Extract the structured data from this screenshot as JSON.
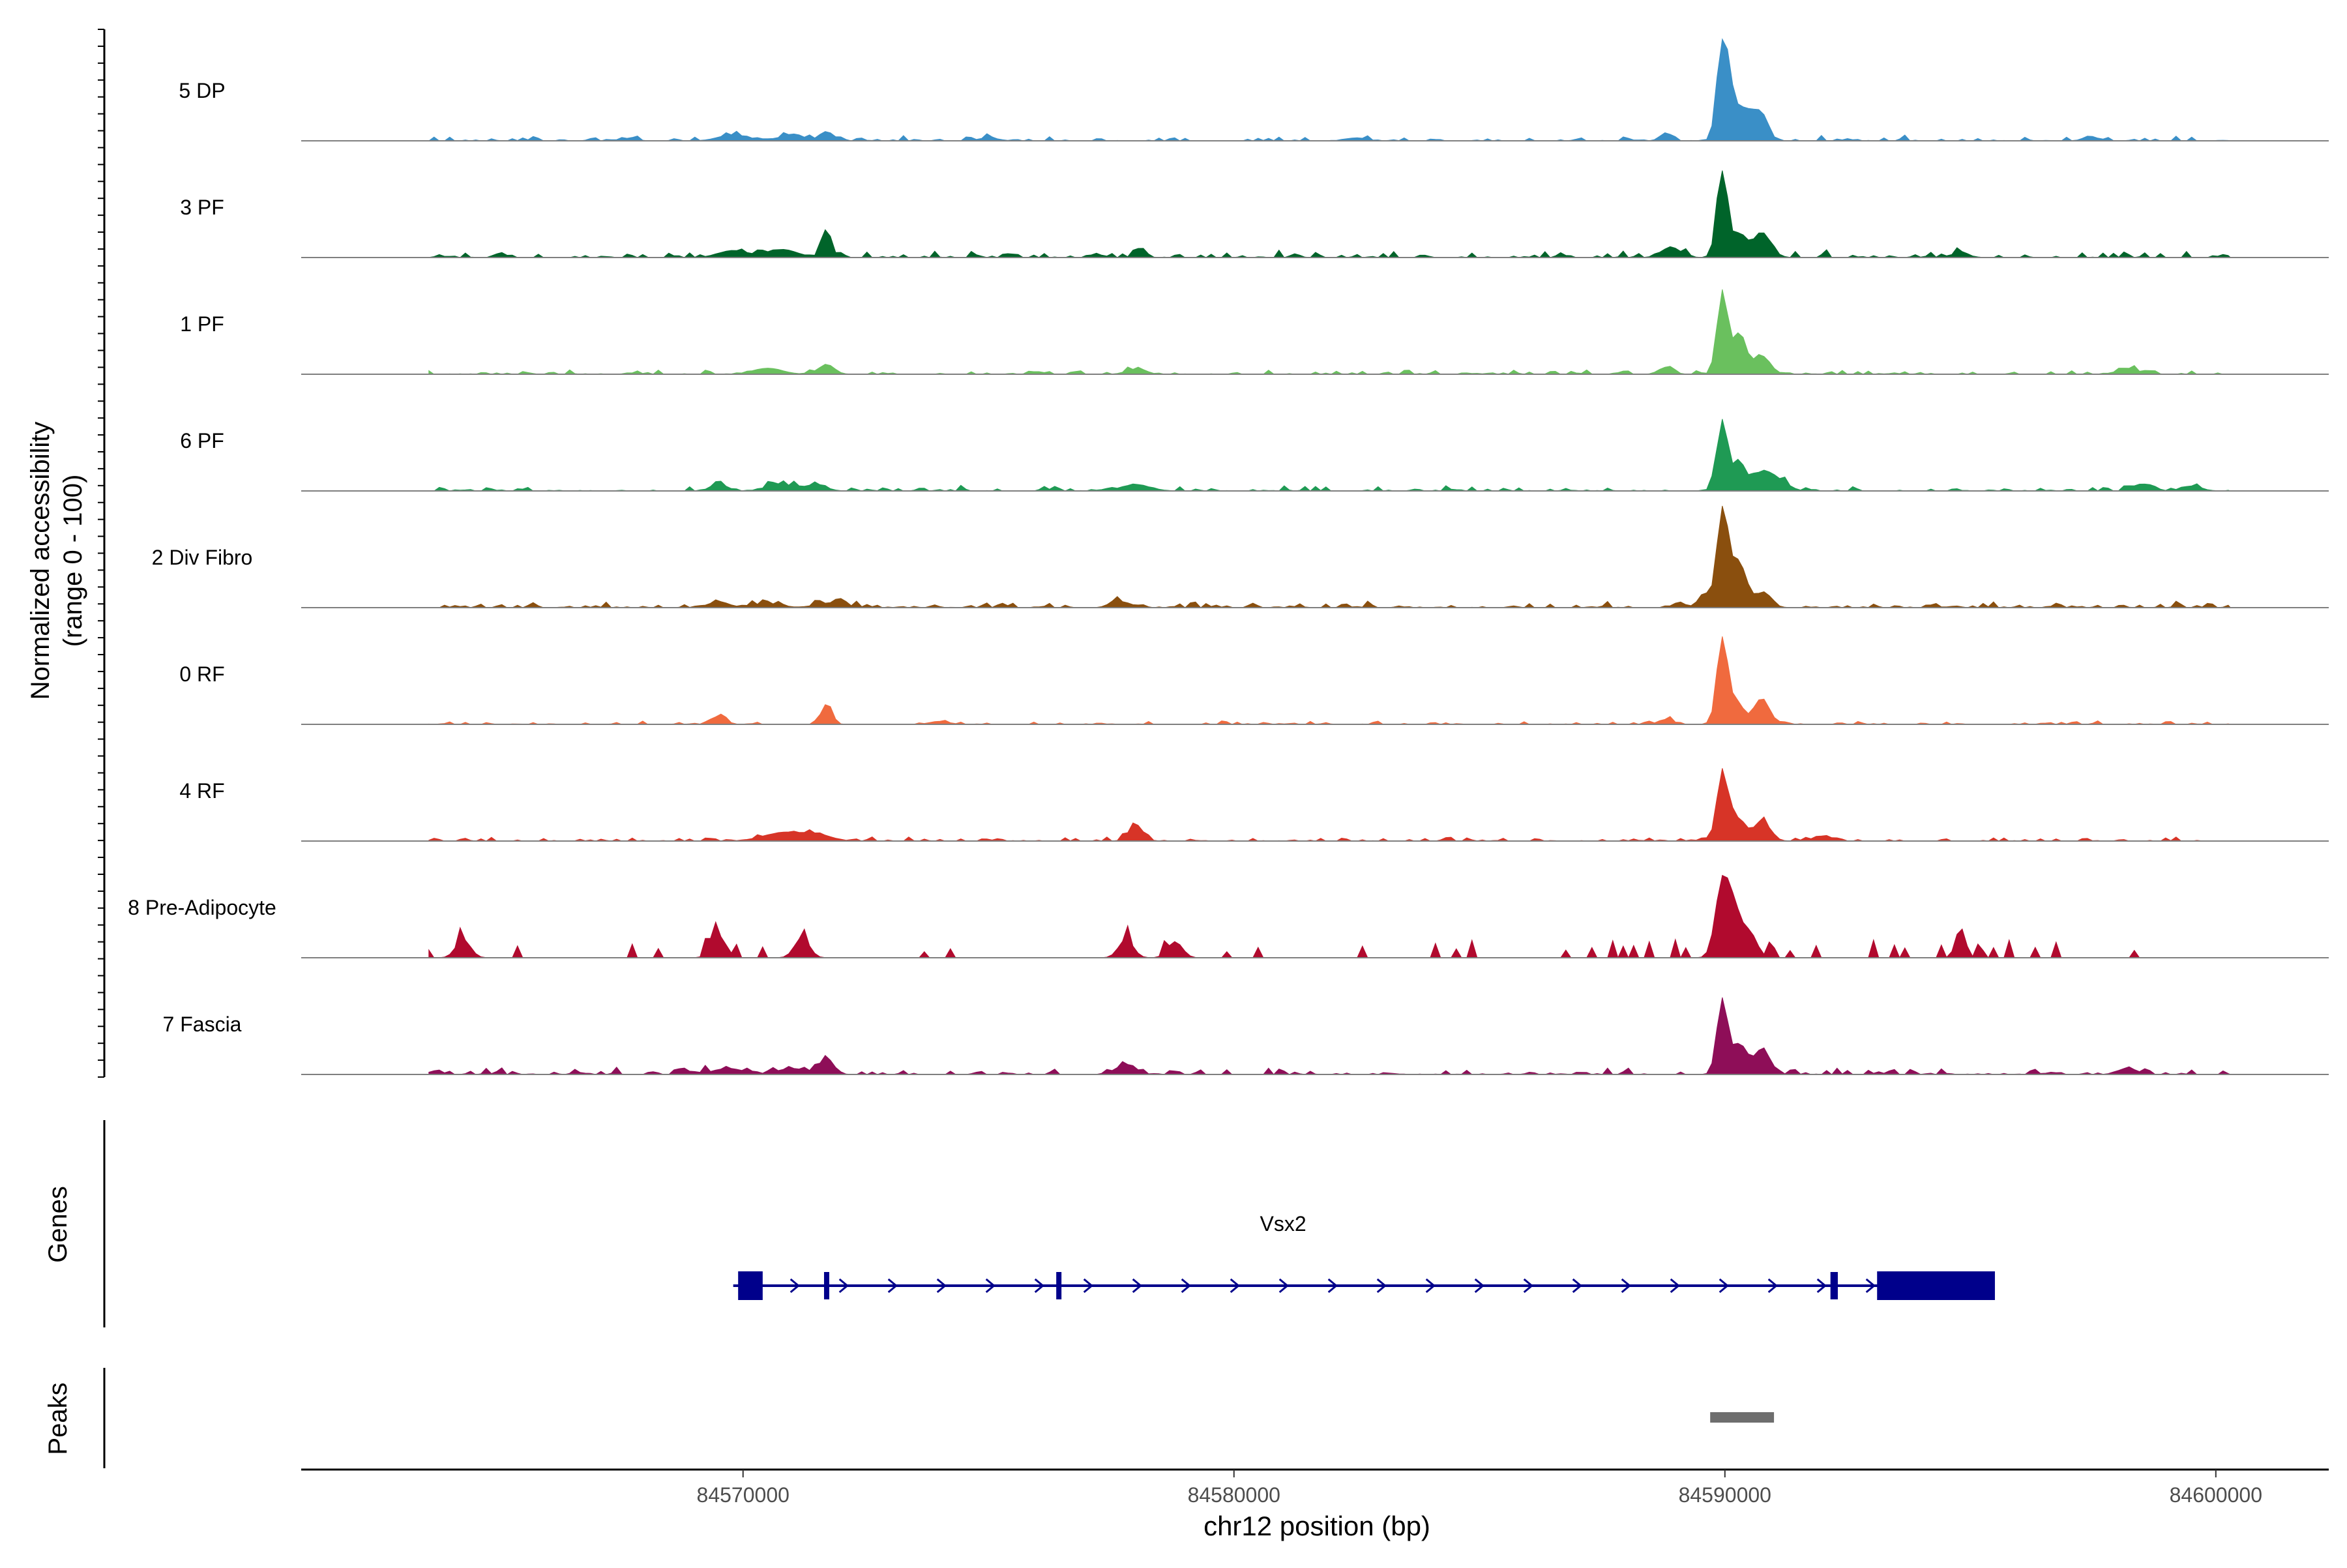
{
  "chart_data": {
    "type": "area",
    "title": "",
    "ylabel_line1": "Normalized accessibility",
    "ylabel_line2": "(range 0 - 100)",
    "xlabel": "chr12 position (bp)",
    "xlim": [
      84561000,
      84602300
    ],
    "xticks": [
      84570000,
      84580000,
      84590000,
      84600000
    ],
    "xtick_labels": [
      "84570000",
      "84580000",
      "84590000",
      "84600000"
    ],
    "track_range": [
      0,
      100
    ],
    "tracks": [
      {
        "label": "5 DP",
        "color": "#3a8fc7",
        "peaks": [
          [
            84589950,
            100,
            110
          ],
          [
            84590150,
            35,
            120
          ],
          [
            84590400,
            25,
            110
          ],
          [
            84590650,
            28,
            130
          ],
          [
            84590850,
            12,
            100
          ],
          [
            84588800,
            8,
            120
          ],
          [
            84571700,
            9,
            120
          ],
          [
            84569800,
            6,
            300
          ],
          [
            84571000,
            5,
            300
          ],
          [
            84575000,
            3,
            200
          ],
          [
            84582500,
            3,
            200
          ],
          [
            84597500,
            3,
            200
          ]
        ],
        "noise": 3,
        "density": 0.55
      },
      {
        "label": "3 PF",
        "color": "#00642a",
        "peaks": [
          [
            84589950,
            85,
            110
          ],
          [
            84590300,
            22,
            130
          ],
          [
            84590750,
            25,
            180
          ],
          [
            84571700,
            28,
            100
          ],
          [
            84578100,
            10,
            110
          ],
          [
            84588900,
            10,
            200
          ],
          [
            84569800,
            7,
            300
          ],
          [
            84570800,
            8,
            300
          ],
          [
            84594800,
            6,
            150
          ]
        ],
        "noise": 4,
        "density": 0.6
      },
      {
        "label": "1 PF",
        "color": "#6ac05e",
        "peaks": [
          [
            84589950,
            80,
            110
          ],
          [
            84590300,
            40,
            130
          ],
          [
            84590750,
            18,
            170
          ],
          [
            84571700,
            10,
            150
          ],
          [
            84588800,
            7,
            150
          ],
          [
            84570500,
            6,
            300
          ],
          [
            84578000,
            5,
            200
          ],
          [
            84598200,
            6,
            200
          ]
        ],
        "noise": 2.5,
        "density": 0.55
      },
      {
        "label": "6 PF",
        "color": "#1f9a54",
        "peaks": [
          [
            84589950,
            70,
            110
          ],
          [
            84590300,
            28,
            130
          ],
          [
            84590750,
            18,
            170
          ],
          [
            84591100,
            10,
            200
          ],
          [
            84569500,
            8,
            150
          ],
          [
            84570800,
            6,
            300
          ],
          [
            84571500,
            6,
            200
          ],
          [
            84578000,
            6,
            300
          ],
          [
            84598500,
            7,
            200
          ],
          [
            84599500,
            5,
            200
          ]
        ],
        "noise": 3,
        "density": 0.6
      },
      {
        "label": "2 Div Fibro",
        "color": "#8a4f0e",
        "peaks": [
          [
            84589950,
            95,
            110
          ],
          [
            84590200,
            35,
            120
          ],
          [
            84590400,
            25,
            110
          ],
          [
            84590800,
            15,
            150
          ],
          [
            84589600,
            12,
            150
          ],
          [
            84569500,
            6,
            200
          ],
          [
            84571800,
            5,
            250
          ],
          [
            84577700,
            6,
            200
          ],
          [
            84570500,
            4,
            300
          ]
        ],
        "noise": 3.5,
        "density": 0.7
      },
      {
        "label": "0 RF",
        "color": "#f06a3e",
        "peaks": [
          [
            84589950,
            85,
            110
          ],
          [
            84590250,
            22,
            130
          ],
          [
            84590750,
            25,
            160
          ],
          [
            84571700,
            20,
            110
          ],
          [
            84569500,
            8,
            150
          ],
          [
            84588800,
            5,
            150
          ],
          [
            84574000,
            3,
            200
          ]
        ],
        "noise": 2,
        "density": 0.5
      },
      {
        "label": "4 RF",
        "color": "#d73427",
        "peaks": [
          [
            84589950,
            70,
            110
          ],
          [
            84590250,
            22,
            130
          ],
          [
            84590750,
            20,
            170
          ],
          [
            84578000,
            15,
            150
          ],
          [
            84570800,
            8,
            400
          ],
          [
            84571500,
            6,
            300
          ],
          [
            84592000,
            5,
            200
          ]
        ],
        "noise": 2.5,
        "density": 0.55
      },
      {
        "label": "8 Pre-Adipocyte",
        "color": "#b10a2e",
        "peaks": [
          [
            84589950,
            75,
            140
          ],
          [
            84590200,
            40,
            130
          ],
          [
            84590500,
            25,
            150
          ],
          [
            84594800,
            30,
            100
          ],
          [
            84569500,
            22,
            150
          ],
          [
            84571200,
            20,
            150
          ],
          [
            84564300,
            18,
            150
          ],
          [
            84577800,
            18,
            150
          ],
          [
            84578800,
            16,
            150
          ]
        ],
        "noise": 12,
        "density": 0.3,
        "sparse": true
      },
      {
        "label": "7 Fascia",
        "color": "#8e0e58",
        "peaks": [
          [
            84589950,
            75,
            110
          ],
          [
            84590300,
            30,
            130
          ],
          [
            84590750,
            25,
            170
          ],
          [
            84571700,
            15,
            150
          ],
          [
            84577800,
            10,
            200
          ],
          [
            84569700,
            6,
            300
          ],
          [
            84571000,
            6,
            300
          ],
          [
            84598200,
            6,
            200
          ]
        ],
        "noise": 4,
        "density": 0.65
      }
    ],
    "gene": {
      "name": "Vsx2",
      "color": "#00008b",
      "strand": "+",
      "start": 84569800,
      "end": 84595300,
      "exons": [
        [
          84569900,
          84570400
        ],
        [
          84571650,
          84571750
        ],
        [
          84576380,
          84576480
        ],
        [
          84592150,
          84592300
        ],
        [
          84593100,
          84595500
        ]
      ]
    },
    "peaks_track": {
      "label": "Peaks",
      "color": "#6e6e6e",
      "regions": [
        [
          84589700,
          84591000
        ]
      ]
    },
    "genes_label": "Genes",
    "peaks_label": "Peaks"
  }
}
